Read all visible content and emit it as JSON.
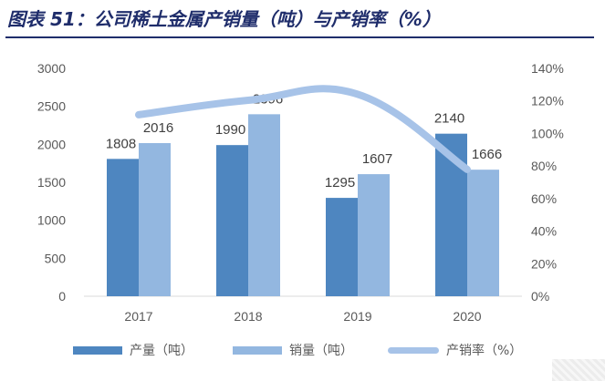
{
  "title": "图表 51：公司稀土金属产销量（吨）与产销率（%）",
  "chart_data": {
    "type": "bar",
    "categories": [
      "2017",
      "2018",
      "2019",
      "2020"
    ],
    "series": [
      {
        "name": "产量（吨）",
        "type": "bar",
        "axis": "left",
        "color": "#4e86c0",
        "values": [
          1808,
          1990,
          1295,
          2140
        ]
      },
      {
        "name": "销量（吨）",
        "type": "bar",
        "axis": "left",
        "color": "#93b7e0",
        "values": [
          2016,
          2396,
          1607,
          1666
        ]
      },
      {
        "name": "产销率（%）",
        "type": "line",
        "axis": "right",
        "color": "#a7c3e8",
        "values": [
          111.5,
          120.4,
          124.1,
          77.9
        ]
      }
    ],
    "y_left": {
      "min": 0,
      "max": 3000,
      "ticks": [
        "0",
        "500",
        "1000",
        "1500",
        "2000",
        "2500",
        "3000"
      ]
    },
    "y_right": {
      "min": 0,
      "max": 140,
      "ticks": [
        "0%",
        "20%",
        "40%",
        "60%",
        "80%",
        "100%",
        "120%",
        "140%"
      ]
    },
    "grid": false,
    "legend": "bottom"
  },
  "legend_labels": [
    "产量（吨）",
    "销量（吨）",
    "产销率（%）"
  ]
}
